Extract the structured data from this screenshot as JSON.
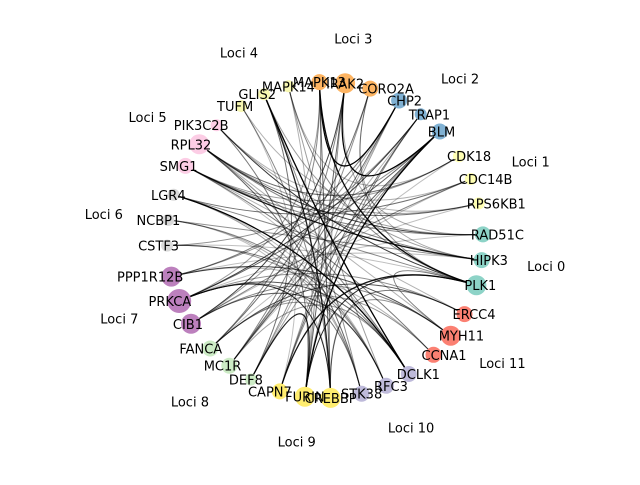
{
  "colors": {
    "edge": "#000000",
    "loci": [
      "#8dd3c7",
      "#ffffb3",
      "#80b1d3",
      "#fdb462",
      "#f7f7b0",
      "#fccde5",
      "#d9d9d9",
      "#bc80bd",
      "#ccebc5",
      "#ffed6f",
      "#bebada",
      "#fb8072"
    ]
  },
  "loci_labels": [
    {
      "text": "Loci 0",
      "locus": 0
    },
    {
      "text": "Loci 1",
      "locus": 1
    },
    {
      "text": "Loci 2",
      "locus": 2
    },
    {
      "text": "Loci 3",
      "locus": 3
    },
    {
      "text": "Loci 4",
      "locus": 4
    },
    {
      "text": "Loci 5",
      "locus": 5
    },
    {
      "text": "Loci 6",
      "locus": 6
    },
    {
      "text": "Loci 7",
      "locus": 7
    },
    {
      "text": "Loci 8",
      "locus": 8
    },
    {
      "text": "Loci 9",
      "locus": 9
    },
    {
      "text": "Loci 10",
      "locus": 10
    },
    {
      "text": "Loci 11",
      "locus": 11
    }
  ],
  "nodes": [
    {
      "id": "PLK1",
      "locus": 0,
      "weight": 3
    },
    {
      "id": "HIPK3",
      "locus": 0,
      "weight": 2
    },
    {
      "id": "RAD51C",
      "locus": 0,
      "weight": 2
    },
    {
      "id": "RPS6KB1",
      "locus": 1,
      "weight": 1
    },
    {
      "id": "CDC14B",
      "locus": 1,
      "weight": 1
    },
    {
      "id": "CDK18",
      "locus": 1,
      "weight": 1
    },
    {
      "id": "BLM",
      "locus": 2,
      "weight": 2
    },
    {
      "id": "TRAP1",
      "locus": 2,
      "weight": 1
    },
    {
      "id": "CHP2",
      "locus": 2,
      "weight": 2
    },
    {
      "id": "CORO2A",
      "locus": 3,
      "weight": 2
    },
    {
      "id": "IRAK2",
      "locus": 3,
      "weight": 3
    },
    {
      "id": "MAPK13",
      "locus": 3,
      "weight": 2
    },
    {
      "id": "MAPK14",
      "locus": 4,
      "weight": 1
    },
    {
      "id": "GLIS2",
      "locus": 4,
      "weight": 1
    },
    {
      "id": "TUFM",
      "locus": 4,
      "weight": 1
    },
    {
      "id": "PIK3C2B",
      "locus": 5,
      "weight": 1
    },
    {
      "id": "RPL32",
      "locus": 5,
      "weight": 3
    },
    {
      "id": "SMG1",
      "locus": 5,
      "weight": 2
    },
    {
      "id": "LGR4",
      "locus": 6,
      "weight": 1
    },
    {
      "id": "NCBP1",
      "locus": 6,
      "weight": 1
    },
    {
      "id": "CSTF3",
      "locus": 6,
      "weight": 1
    },
    {
      "id": "PPP1R12B",
      "locus": 7,
      "weight": 3
    },
    {
      "id": "PRKCA",
      "locus": 7,
      "weight": 4
    },
    {
      "id": "CIB1",
      "locus": 7,
      "weight": 3
    },
    {
      "id": "FANCA",
      "locus": 8,
      "weight": 2
    },
    {
      "id": "MC1R",
      "locus": 8,
      "weight": 2
    },
    {
      "id": "DEF8",
      "locus": 8,
      "weight": 1
    },
    {
      "id": "CAPN7",
      "locus": 9,
      "weight": 2
    },
    {
      "id": "FURIN",
      "locus": 9,
      "weight": 3
    },
    {
      "id": "CREBBP",
      "locus": 9,
      "weight": 3
    },
    {
      "id": "STK38",
      "locus": 10,
      "weight": 2
    },
    {
      "id": "RFC3",
      "locus": 10,
      "weight": 2
    },
    {
      "id": "DCLK1",
      "locus": 10,
      "weight": 2
    },
    {
      "id": "CCNA1",
      "locus": 11,
      "weight": 2
    },
    {
      "id": "MYH11",
      "locus": 11,
      "weight": 3
    },
    {
      "id": "ERCC4",
      "locus": 11,
      "weight": 2
    }
  ],
  "edges": [
    {
      "s": "DCLK1",
      "t": "GLIS2",
      "w": 1.0
    },
    {
      "s": "DCLK1",
      "t": "LGR4",
      "w": 1.0
    },
    {
      "s": "BLM",
      "t": "FURIN",
      "w": 1.0
    },
    {
      "s": "CHP2",
      "t": "MAPK13",
      "w": 1.0
    },
    {
      "s": "IRAK2",
      "t": "BLM",
      "w": 1.0
    },
    {
      "s": "PLK1",
      "t": "MAPK13",
      "w": 0.95
    },
    {
      "s": "PLK1",
      "t": "CAPN7",
      "w": 0.9
    },
    {
      "s": "HIPK3",
      "t": "SMG1",
      "w": 0.9
    },
    {
      "s": "CREBBP",
      "t": "GLIS2",
      "w": 0.85
    },
    {
      "s": "CREBBP",
      "t": "PRKCA",
      "w": 0.8
    },
    {
      "s": "FURIN",
      "t": "DEF8",
      "w": 0.85
    },
    {
      "s": "PLK1",
      "t": "FURIN",
      "w": 0.8
    },
    {
      "s": "PLK1",
      "t": "PIK3C2B",
      "w": 0.75
    },
    {
      "s": "RAD51C",
      "t": "RPL32",
      "w": 0.7
    },
    {
      "s": "CIB1",
      "t": "IRAK2",
      "w": 0.7
    },
    {
      "s": "PRKCA",
      "t": "TRAP1",
      "w": 0.7
    },
    {
      "s": "PPP1R12B",
      "t": "MYH11",
      "w": 0.65
    },
    {
      "s": "MC1R",
      "t": "BLM",
      "w": 0.6
    },
    {
      "s": "FANCA",
      "t": "ERCC4",
      "w": 0.6
    },
    {
      "s": "CIB1",
      "t": "RFC3",
      "w": 0.6
    },
    {
      "s": "DCLK1",
      "t": "PRKCA",
      "w": 0.6
    },
    {
      "s": "STK38",
      "t": "RPL32",
      "w": 0.55
    },
    {
      "s": "CDK18",
      "t": "RPL32",
      "w": 0.5
    },
    {
      "s": "RPS6KB1",
      "t": "SMG1",
      "w": 0.5
    },
    {
      "s": "CDC14B",
      "t": "LGR4",
      "w": 0.5
    },
    {
      "s": "MAPK13",
      "t": "CREBBP",
      "w": 0.55
    },
    {
      "s": "IRAK2",
      "t": "FURIN",
      "w": 0.55
    },
    {
      "s": "CORO2A",
      "t": "FANCA",
      "w": 0.5
    },
    {
      "s": "CHP2",
      "t": "MC1R",
      "w": 0.5
    },
    {
      "s": "TRAP1",
      "t": "CAPN7",
      "w": 0.5
    },
    {
      "s": "BLM",
      "t": "PRKCA",
      "w": 0.55
    },
    {
      "s": "MYH11",
      "t": "PLK1",
      "w": 0.45
    },
    {
      "s": "ERCC4",
      "t": "CREBBP",
      "w": 0.45
    },
    {
      "s": "CCNA1",
      "t": "SMG1",
      "w": 0.45
    },
    {
      "s": "RFC3",
      "t": "NCBP1",
      "w": 0.4
    },
    {
      "s": "DCLK1",
      "t": "CSTF3",
      "w": 0.45
    },
    {
      "s": "GLIS2",
      "t": "DEF8",
      "w": 0.5
    },
    {
      "s": "MAPK14",
      "t": "PLK1",
      "w": 0.4
    },
    {
      "s": "TUFM",
      "t": "CREBBP",
      "w": 0.4
    },
    {
      "s": "PIK3C2B",
      "t": "FURIN",
      "w": 0.45
    },
    {
      "s": "RPL32",
      "t": "HIPK3",
      "w": 0.4
    },
    {
      "s": "SMG1",
      "t": "RAD51C",
      "w": 0.4
    },
    {
      "s": "LGR4",
      "t": "PLK1",
      "w": 0.4
    },
    {
      "s": "NCBP1",
      "t": "HIPK3",
      "w": 0.35
    },
    {
      "s": "CSTF3",
      "t": "RFC3",
      "w": 0.35
    },
    {
      "s": "PPP1R12B",
      "t": "CHP2",
      "w": 0.45
    },
    {
      "s": "PRKCA",
      "t": "STK38",
      "w": 0.45
    },
    {
      "s": "CIB1",
      "t": "CDC14B",
      "w": 0.4
    },
    {
      "s": "FANCA",
      "t": "MAPK13",
      "w": 0.4
    },
    {
      "s": "MC1R",
      "t": "IRAK2",
      "w": 0.4
    },
    {
      "s": "DEF8",
      "t": "CORO2A",
      "w": 0.35
    },
    {
      "s": "CAPN7",
      "t": "BLM",
      "w": 0.4
    },
    {
      "s": "FURIN",
      "t": "TRAP1",
      "w": 0.4
    },
    {
      "s": "CREBBP",
      "t": "MYH11",
      "w": 0.35
    },
    {
      "s": "STK38",
      "t": "GLIS2",
      "w": 0.35
    },
    {
      "s": "RFC3",
      "t": "MAPK14",
      "w": 0.3
    },
    {
      "s": "DCLK1",
      "t": "RPL32",
      "w": 0.4
    },
    {
      "s": "CCNA1",
      "t": "FANCA",
      "w": 0.35
    },
    {
      "s": "MYH11",
      "t": "CIB1",
      "w": 0.4
    },
    {
      "s": "ERCC4",
      "t": "PRKCA",
      "w": 0.35
    },
    {
      "s": "BLM",
      "t": "CSTF3",
      "w": 0.35
    },
    {
      "s": "TRAP1",
      "t": "PPP1R12B",
      "w": 0.35
    },
    {
      "s": "CHP2",
      "t": "CAPN7",
      "w": 0.3
    },
    {
      "s": "CORO2A",
      "t": "PLK1",
      "w": 0.3
    },
    {
      "s": "IRAK2",
      "t": "CREBBP",
      "w": 0.35
    },
    {
      "s": "MAPK13",
      "t": "FURIN",
      "w": 0.35
    },
    {
      "s": "GLIS2",
      "t": "HIPK3",
      "w": 0.3
    },
    {
      "s": "PIK3C2B",
      "t": "RAD51C",
      "w": 0.3
    },
    {
      "s": "RPL32",
      "t": "RPS6KB1",
      "w": 0.3
    },
    {
      "s": "SMG1",
      "t": "CDK18",
      "w": 0.3
    },
    {
      "s": "LGR4",
      "t": "STK38",
      "w": 0.3
    },
    {
      "s": "PRKCA",
      "t": "MAPK13",
      "w": 0.3
    },
    {
      "s": "CIB1",
      "t": "CHP2",
      "w": 0.3
    },
    {
      "s": "FANCA",
      "t": "RFC3",
      "w": 0.3
    },
    {
      "s": "MC1R",
      "t": "DCLK1",
      "w": 0.3
    },
    {
      "s": "DEF8",
      "t": "BLM",
      "w": 0.3
    },
    {
      "s": "RAD51C",
      "t": "IRAK2",
      "w": 0.25
    },
    {
      "s": "HIPK3",
      "t": "CORO2A",
      "w": 0.25
    },
    {
      "s": "CDK18",
      "t": "MAPK14",
      "w": 0.2
    },
    {
      "s": "RPS6KB1",
      "t": "TUFM",
      "w": 0.2
    },
    {
      "s": "CDC14B",
      "t": "PIK3C2B",
      "w": 0.2
    },
    {
      "s": "STK38",
      "t": "NCBP1",
      "w": 0.2
    },
    {
      "s": "MYH11",
      "t": "RPL32",
      "w": 0.2
    },
    {
      "s": "ERCC4",
      "t": "SMG1",
      "w": 0.2
    },
    {
      "s": "CCNA1",
      "t": "PPP1R12B",
      "w": 0.2
    },
    {
      "s": "TRAP1",
      "t": "MC1R",
      "w": 0.2
    },
    {
      "s": "CHP2",
      "t": "DEF8",
      "w": 0.2
    },
    {
      "s": "MAPK14",
      "t": "FURIN",
      "w": 0.2
    },
    {
      "s": "TUFM",
      "t": "CAPN7",
      "w": 0.15
    },
    {
      "s": "NCBP1",
      "t": "CREBBP",
      "w": 0.15
    },
    {
      "s": "CSTF3",
      "t": "PLK1",
      "w": 0.15
    },
    {
      "s": "PPP1R12B",
      "t": "HIPK3",
      "w": 0.15
    },
    {
      "s": "PRKCA",
      "t": "RAD51C",
      "w": 0.15
    },
    {
      "s": "CIB1",
      "t": "RPS6KB1",
      "w": 0.15
    },
    {
      "s": "FANCA",
      "t": "CDC14B",
      "w": 0.15
    },
    {
      "s": "MC1R",
      "t": "CDK18",
      "w": 0.15
    },
    {
      "s": "LGR4",
      "t": "RFC3",
      "w": 0.15
    },
    {
      "s": "SMG1",
      "t": "DCLK1",
      "w": 0.15
    }
  ]
}
